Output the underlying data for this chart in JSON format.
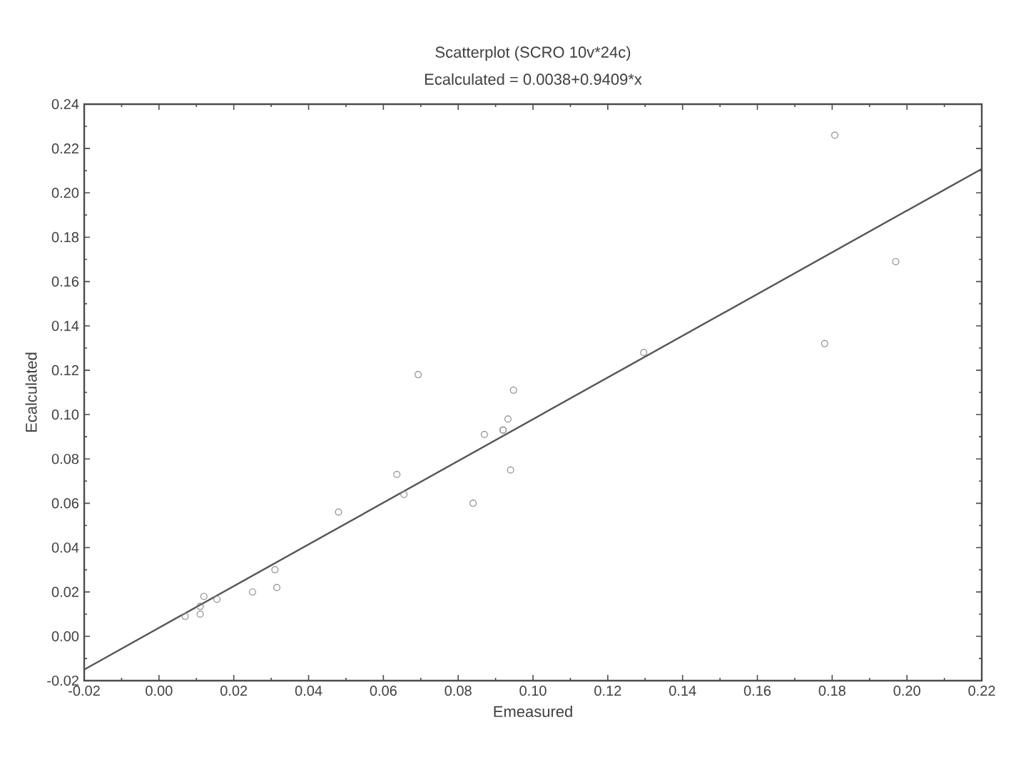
{
  "chart_data": {
    "type": "scatter",
    "title": "Scatterplot (SCRO 10v*24c)",
    "subtitle": "Ecalculated = 0.0038+0.9409*x",
    "xlabel": "Emeasured",
    "ylabel": "Ecalculated",
    "series": [
      {
        "color": "#8c8c8c",
        "marker": "circle",
        "x": [
          0.007,
          0.011,
          0.012,
          0.0155,
          0.011,
          0.031,
          0.0315,
          0.025,
          0.048,
          0.0655,
          0.0636,
          0.084,
          0.094,
          0.092,
          0.087,
          0.0693,
          0.0948,
          0.0933,
          0.092,
          0.1296,
          0.1807,
          0.197,
          0.178
        ],
        "values": [
          0.009,
          0.01,
          0.018,
          0.0167,
          0.0135,
          0.03,
          0.022,
          0.02,
          0.056,
          0.064,
          0.073,
          0.06,
          0.075,
          0.093,
          0.091,
          0.118,
          0.111,
          0.098,
          0.093,
          0.128,
          0.226,
          0.169,
          0.132
        ]
      },
      {
        "type": "line",
        "color": "#555555",
        "marker": "none",
        "x": [
          -0.02,
          0.22
        ],
        "values": [
          -0.015,
          0.2108
        ]
      }
    ],
    "xlim": [
      -0.02,
      0.22
    ],
    "ylim": [
      -0.02,
      0.24
    ],
    "xticks": [
      {
        "value": -0.02,
        "label": "-0.02"
      },
      {
        "value": 0,
        "label": "0.00"
      },
      {
        "value": 0.02,
        "label": "0.02"
      },
      {
        "value": 0.04,
        "label": "0.04"
      },
      {
        "value": 0.06,
        "label": "0.06"
      },
      {
        "value": 0.08,
        "label": "0.08"
      },
      {
        "value": 0.1,
        "label": "0.10"
      },
      {
        "value": 0.12,
        "label": "0.12"
      },
      {
        "value": 0.14,
        "label": "0.14"
      },
      {
        "value": 0.16,
        "label": "0.16"
      },
      {
        "value": 0.18,
        "label": "0.18"
      },
      {
        "value": 0.2,
        "label": "0.20"
      },
      {
        "value": 0.22,
        "label": "0.22"
      }
    ],
    "yticks": [
      {
        "value": -0.02,
        "label": "-0.02"
      },
      {
        "value": 0,
        "label": "0.00"
      },
      {
        "value": 0.02,
        "label": "0.02"
      },
      {
        "value": 0.04,
        "label": "0.04"
      },
      {
        "value": 0.06,
        "label": "0.06"
      },
      {
        "value": 0.08,
        "label": "0.08"
      },
      {
        "value": 0.1,
        "label": "0.10"
      },
      {
        "value": 0.12,
        "label": "0.12"
      },
      {
        "value": 0.14,
        "label": "0.14"
      },
      {
        "value": 0.16,
        "label": "0.16"
      },
      {
        "value": 0.18,
        "label": "0.18"
      },
      {
        "value": 0.2,
        "label": "0.20"
      },
      {
        "value": 0.22,
        "label": "0.22"
      },
      {
        "value": 0.24,
        "label": "0.24"
      }
    ],
    "grid": false
  }
}
